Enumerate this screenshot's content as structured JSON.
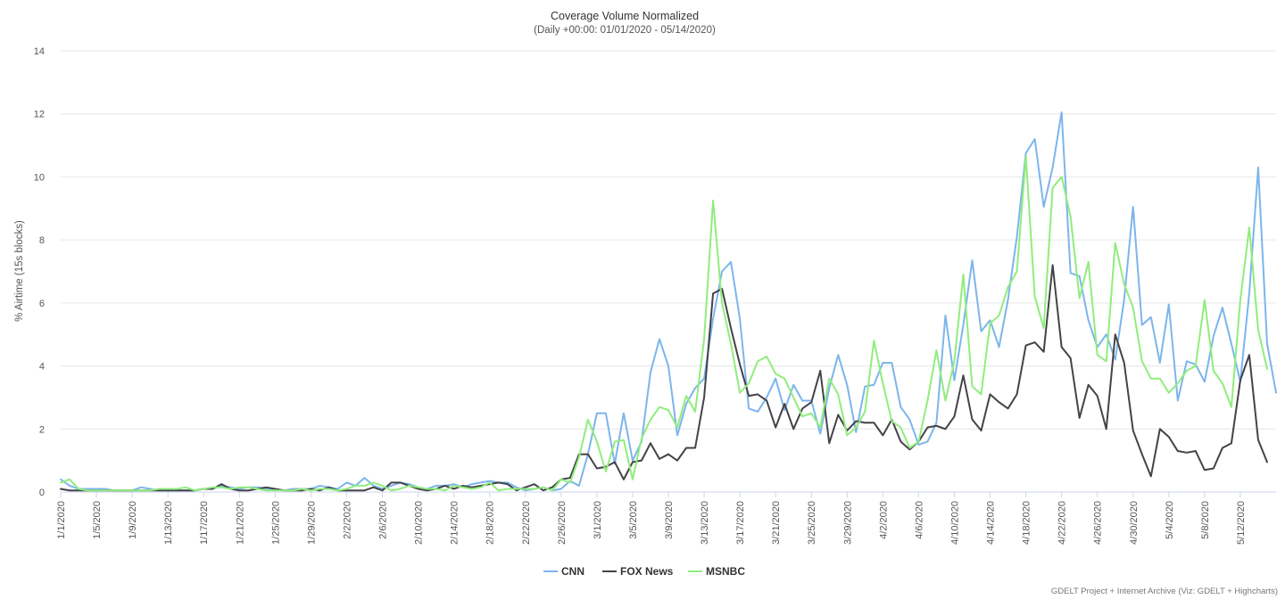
{
  "chart_data": {
    "type": "line",
    "title": "Coverage Volume Normalized",
    "subtitle": "(Daily +00:00: 01/01/2020 - 05/14/2020)",
    "ylabel": "% Airtime (15s blocks)",
    "xlabel": "",
    "ylim": [
      0,
      14
    ],
    "yticks": [
      0,
      2,
      4,
      6,
      8,
      10,
      12,
      14
    ],
    "grid": true,
    "legend_position": "bottom-center",
    "start_date": "1/1/2020",
    "x_tick_labels": [
      "1/1/2020",
      "1/5/2020",
      "1/9/2020",
      "1/13/2020",
      "1/17/2020",
      "1/21/2020",
      "1/25/2020",
      "1/29/2020",
      "2/2/2020",
      "2/6/2020",
      "2/10/2020",
      "2/14/2020",
      "2/18/2020",
      "2/22/2020",
      "2/26/2020",
      "3/1/2020",
      "3/5/2020",
      "3/9/2020",
      "3/13/2020",
      "3/17/2020",
      "3/21/2020",
      "3/25/2020",
      "3/29/2020",
      "4/2/2020",
      "4/6/2020",
      "4/10/2020",
      "4/14/2020",
      "4/18/2020",
      "4/22/2020",
      "4/26/2020",
      "4/30/2020",
      "5/4/2020",
      "5/8/2020",
      "5/12/2020"
    ],
    "series": [
      {
        "name": "CNN",
        "color": "#7cb5ec",
        "values": [
          0.4,
          0.2,
          0.1,
          0.1,
          0.1,
          0.1,
          0.05,
          0.05,
          0.05,
          0.15,
          0.1,
          0.05,
          0.05,
          0.05,
          0.05,
          0.05,
          0.1,
          0.1,
          0.2,
          0.15,
          0.1,
          0.15,
          0.15,
          0.1,
          0.1,
          0.05,
          0.1,
          0.1,
          0.1,
          0.2,
          0.15,
          0.1,
          0.3,
          0.2,
          0.45,
          0.2,
          0.1,
          0.2,
          0.3,
          0.25,
          0.15,
          0.1,
          0.2,
          0.2,
          0.25,
          0.15,
          0.25,
          0.3,
          0.35,
          0.3,
          0.3,
          0.15,
          0.05,
          0.1,
          0.15,
          0.05,
          0.1,
          0.35,
          0.2,
          1.2,
          2.5,
          2.5,
          0.9,
          2.5,
          1.0,
          1.6,
          3.8,
          4.85,
          4.0,
          1.8,
          2.8,
          3.3,
          3.6,
          5.5,
          7.0,
          7.3,
          5.5,
          2.65,
          2.55,
          3.0,
          3.6,
          2.6,
          3.4,
          2.9,
          2.9,
          1.85,
          3.3,
          4.35,
          3.4,
          1.9,
          3.35,
          3.4,
          4.1,
          4.1,
          2.7,
          2.3,
          1.5,
          1.6,
          2.2,
          5.6,
          3.55,
          5.3,
          7.35,
          5.1,
          5.45,
          4.6,
          6.1,
          8.1,
          10.75,
          11.2,
          9.05,
          10.3,
          12.05,
          6.95,
          6.85,
          5.45,
          4.6,
          5.0,
          4.2,
          6.1,
          9.05,
          5.3,
          5.55,
          4.1,
          5.95,
          2.9,
          4.15,
          4.05,
          3.5,
          4.95,
          5.85,
          4.7,
          3.5,
          6.3,
          10.3,
          4.7,
          3.15
        ]
      },
      {
        "name": "FOX News",
        "color": "#434348",
        "values": [
          0.1,
          0.05,
          0.05,
          0.05,
          0.05,
          0.05,
          0.05,
          0.05,
          0.05,
          0.05,
          0.05,
          0.05,
          0.05,
          0.05,
          0.05,
          0.05,
          0.1,
          0.1,
          0.25,
          0.1,
          0.05,
          0.05,
          0.1,
          0.15,
          0.1,
          0.05,
          0.05,
          0.05,
          0.1,
          0.05,
          0.15,
          0.05,
          0.05,
          0.05,
          0.05,
          0.15,
          0.05,
          0.3,
          0.3,
          0.2,
          0.1,
          0.05,
          0.1,
          0.2,
          0.1,
          0.2,
          0.15,
          0.2,
          0.25,
          0.3,
          0.25,
          0.05,
          0.15,
          0.25,
          0.05,
          0.15,
          0.4,
          0.45,
          1.2,
          1.2,
          0.75,
          0.8,
          0.95,
          0.4,
          0.95,
          1.0,
          1.55,
          1.05,
          1.2,
          1.0,
          1.4,
          1.4,
          3.0,
          6.3,
          6.45,
          5.2,
          4.05,
          3.05,
          3.1,
          2.9,
          2.05,
          2.8,
          2.0,
          2.65,
          2.85,
          3.85,
          1.55,
          2.45,
          1.95,
          2.25,
          2.2,
          2.2,
          1.8,
          2.3,
          1.6,
          1.35,
          1.6,
          2.05,
          2.1,
          2.0,
          2.4,
          3.7,
          2.3,
          1.95,
          3.1,
          2.85,
          2.65,
          3.1,
          4.65,
          4.75,
          4.45,
          7.2,
          4.6,
          4.25,
          2.35,
          3.4,
          3.05,
          2.0,
          5.0,
          4.1,
          1.95,
          1.2,
          0.5,
          2.0,
          1.75,
          1.3,
          1.25,
          1.3,
          0.7,
          0.75,
          1.4,
          1.55,
          3.55,
          4.35,
          1.65,
          0.95
        ]
      },
      {
        "name": "MSNBC",
        "color": "#90ed7d",
        "values": [
          0.3,
          0.4,
          0.1,
          0.05,
          0.05,
          0.05,
          0.05,
          0.05,
          0.05,
          0.05,
          0.05,
          0.1,
          0.1,
          0.1,
          0.15,
          0.05,
          0.1,
          0.15,
          0.15,
          0.1,
          0.15,
          0.15,
          0.1,
          0.05,
          0.05,
          0.05,
          0.05,
          0.1,
          0.05,
          0.1,
          0.1,
          0.05,
          0.1,
          0.2,
          0.2,
          0.3,
          0.2,
          0.05,
          0.1,
          0.2,
          0.15,
          0.1,
          0.1,
          0.05,
          0.2,
          0.15,
          0.1,
          0.15,
          0.3,
          0.05,
          0.1,
          0.1,
          0.1,
          0.1,
          0.15,
          0.05,
          0.4,
          0.3,
          1.1,
          2.3,
          1.6,
          0.65,
          1.6,
          1.65,
          0.4,
          1.7,
          2.3,
          2.7,
          2.6,
          2.05,
          3.05,
          2.55,
          4.85,
          9.25,
          6.0,
          4.7,
          3.15,
          3.45,
          4.15,
          4.3,
          3.75,
          3.6,
          3.0,
          2.4,
          2.5,
          2.05,
          3.6,
          3.1,
          1.8,
          2.05,
          2.55,
          4.8,
          3.45,
          2.25,
          2.05,
          1.4,
          1.6,
          2.9,
          4.5,
          2.9,
          4.15,
          6.9,
          3.35,
          3.1,
          5.35,
          5.6,
          6.5,
          7.0,
          10.65,
          6.2,
          5.2,
          9.65,
          10.0,
          8.75,
          6.15,
          7.3,
          4.35,
          4.15,
          7.9,
          6.6,
          5.85,
          4.15,
          3.6,
          3.6,
          3.15,
          3.45,
          3.85,
          4.0,
          6.1,
          3.85,
          3.45,
          2.7,
          6.1,
          8.4,
          5.15,
          3.9
        ]
      }
    ]
  },
  "credit": "GDELT Project + Internet Archive (Viz: GDELT + Highcharts)"
}
